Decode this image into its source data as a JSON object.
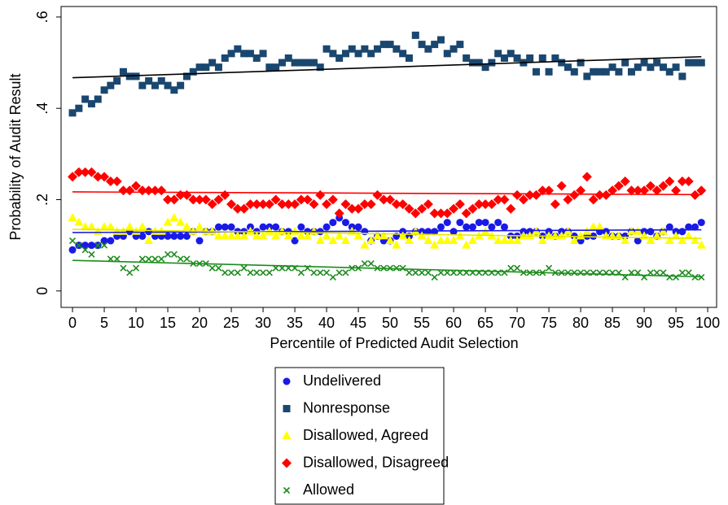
{
  "chart_data": {
    "type": "scatter",
    "x_label": "Percentile of Predicted Audit Selection",
    "y_label": "Probability of Audit Result",
    "xlim": [
      -1.8,
      101.4
    ],
    "ylim": [
      -0.036,
      0.623
    ],
    "xticks": [
      0,
      5,
      10,
      15,
      20,
      25,
      30,
      35,
      40,
      45,
      50,
      55,
      60,
      65,
      70,
      75,
      80,
      85,
      90,
      95,
      100
    ],
    "yticks": [
      0,
      {
        "value": 0.2,
        "label": ".2"
      },
      {
        "value": 0.4,
        "label": ".4"
      },
      {
        "value": 0.6,
        "label": ".6"
      }
    ],
    "x": [
      0,
      1,
      2,
      3,
      4,
      5,
      6,
      7,
      8,
      9,
      10,
      11,
      12,
      13,
      14,
      15,
      16,
      17,
      18,
      19,
      20,
      21,
      22,
      23,
      24,
      25,
      26,
      27,
      28,
      29,
      30,
      31,
      32,
      33,
      34,
      35,
      36,
      37,
      38,
      39,
      40,
      41,
      42,
      43,
      44,
      45,
      46,
      47,
      48,
      49,
      50,
      51,
      52,
      53,
      54,
      55,
      56,
      57,
      58,
      59,
      60,
      61,
      62,
      63,
      64,
      65,
      66,
      67,
      68,
      69,
      70,
      71,
      72,
      73,
      74,
      75,
      76,
      77,
      78,
      79,
      80,
      81,
      82,
      83,
      84,
      85,
      86,
      87,
      88,
      89,
      90,
      91,
      92,
      93,
      94,
      95,
      96,
      97,
      98,
      99
    ],
    "series": [
      {
        "name": "Undelivered",
        "color": "#1a1ae6",
        "marker": "circle",
        "values": [
          0.09,
          0.1,
          0.1,
          0.1,
          0.1,
          0.11,
          0.11,
          0.12,
          0.12,
          0.13,
          0.12,
          0.12,
          0.13,
          0.12,
          0.12,
          0.12,
          0.12,
          0.12,
          0.12,
          0.13,
          0.11,
          0.13,
          0.13,
          0.14,
          0.14,
          0.14,
          0.13,
          0.13,
          0.14,
          0.13,
          0.14,
          0.14,
          0.14,
          0.13,
          0.13,
          0.11,
          0.14,
          0.13,
          0.13,
          0.13,
          0.14,
          0.15,
          0.16,
          0.15,
          0.14,
          0.14,
          0.13,
          0.11,
          0.12,
          0.11,
          0.11,
          0.12,
          0.13,
          0.12,
          0.13,
          0.13,
          0.13,
          0.13,
          0.14,
          0.15,
          0.13,
          0.15,
          0.14,
          0.14,
          0.15,
          0.15,
          0.14,
          0.15,
          0.14,
          0.12,
          0.12,
          0.13,
          0.13,
          0.13,
          0.12,
          0.13,
          0.12,
          0.13,
          0.13,
          0.12,
          0.11,
          0.12,
          0.12,
          0.13,
          0.13,
          0.12,
          0.12,
          0.12,
          0.13,
          0.11,
          0.13,
          0.13,
          0.12,
          0.13,
          0.14,
          0.13,
          0.13,
          0.14,
          0.14,
          0.15
        ]
      },
      {
        "name": "Nonresponse",
        "color": "#1a476f",
        "marker": "square",
        "values": [
          0.39,
          0.4,
          0.42,
          0.41,
          0.42,
          0.44,
          0.45,
          0.46,
          0.48,
          0.47,
          0.47,
          0.45,
          0.46,
          0.45,
          0.46,
          0.45,
          0.44,
          0.45,
          0.47,
          0.48,
          0.49,
          0.49,
          0.5,
          0.49,
          0.51,
          0.52,
          0.53,
          0.52,
          0.52,
          0.51,
          0.52,
          0.49,
          0.49,
          0.5,
          0.51,
          0.5,
          0.5,
          0.5,
          0.5,
          0.49,
          0.53,
          0.52,
          0.51,
          0.52,
          0.53,
          0.52,
          0.53,
          0.52,
          0.53,
          0.54,
          0.54,
          0.53,
          0.52,
          0.51,
          0.56,
          0.54,
          0.53,
          0.54,
          0.55,
          0.52,
          0.53,
          0.54,
          0.51,
          0.5,
          0.5,
          0.49,
          0.5,
          0.52,
          0.51,
          0.52,
          0.51,
          0.5,
          0.51,
          0.48,
          0.51,
          0.48,
          0.51,
          0.5,
          0.49,
          0.48,
          0.5,
          0.47,
          0.48,
          0.48,
          0.48,
          0.49,
          0.48,
          0.5,
          0.48,
          0.49,
          0.5,
          0.49,
          0.5,
          0.49,
          0.48,
          0.49,
          0.47,
          0.5,
          0.5,
          0.5
        ]
      },
      {
        "name": "Disallowed, Agreed",
        "color": "#ffff00",
        "marker": "triangle",
        "values": [
          0.16,
          0.15,
          0.14,
          0.14,
          0.13,
          0.14,
          0.14,
          0.13,
          0.13,
          0.14,
          0.13,
          0.14,
          0.11,
          0.13,
          0.13,
          0.15,
          0.16,
          0.15,
          0.14,
          0.13,
          0.14,
          0.13,
          0.13,
          0.12,
          0.12,
          0.12,
          0.12,
          0.12,
          0.13,
          0.12,
          0.12,
          0.13,
          0.12,
          0.13,
          0.12,
          0.13,
          0.12,
          0.12,
          0.13,
          0.11,
          0.12,
          0.11,
          0.12,
          0.11,
          0.13,
          0.12,
          0.1,
          0.11,
          0.12,
          0.12,
          0.11,
          0.1,
          0.12,
          0.11,
          0.13,
          0.12,
          0.11,
          0.1,
          0.11,
          0.11,
          0.11,
          0.12,
          0.1,
          0.11,
          0.12,
          0.13,
          0.12,
          0.11,
          0.11,
          0.11,
          0.11,
          0.12,
          0.12,
          0.13,
          0.11,
          0.12,
          0.12,
          0.12,
          0.13,
          0.11,
          0.12,
          0.13,
          0.14,
          0.14,
          0.12,
          0.12,
          0.12,
          0.11,
          0.13,
          0.13,
          0.12,
          0.11,
          0.12,
          0.13,
          0.11,
          0.12,
          0.11,
          0.12,
          0.11,
          0.1
        ]
      },
      {
        "name": "Disallowed, Disagreed",
        "color": "#ff0000",
        "marker": "diamond",
        "values": [
          0.25,
          0.26,
          0.26,
          0.26,
          0.25,
          0.25,
          0.24,
          0.24,
          0.22,
          0.22,
          0.23,
          0.22,
          0.22,
          0.22,
          0.22,
          0.2,
          0.2,
          0.21,
          0.21,
          0.2,
          0.2,
          0.2,
          0.19,
          0.2,
          0.21,
          0.19,
          0.18,
          0.18,
          0.19,
          0.19,
          0.19,
          0.19,
          0.2,
          0.19,
          0.19,
          0.19,
          0.2,
          0.2,
          0.19,
          0.21,
          0.19,
          0.2,
          0.17,
          0.19,
          0.18,
          0.18,
          0.19,
          0.19,
          0.21,
          0.2,
          0.2,
          0.19,
          0.19,
          0.18,
          0.17,
          0.18,
          0.19,
          0.17,
          0.17,
          0.17,
          0.18,
          0.19,
          0.17,
          0.18,
          0.19,
          0.19,
          0.19,
          0.2,
          0.2,
          0.18,
          0.21,
          0.2,
          0.21,
          0.21,
          0.22,
          0.22,
          0.19,
          0.23,
          0.2,
          0.21,
          0.22,
          0.25,
          0.2,
          0.21,
          0.21,
          0.22,
          0.23,
          0.24,
          0.22,
          0.22,
          0.22,
          0.23,
          0.22,
          0.23,
          0.24,
          0.22,
          0.24,
          0.24,
          0.21,
          0.22
        ]
      },
      {
        "name": "Allowed",
        "color": "#1c8c1c",
        "marker": "x",
        "values": [
          0.11,
          0.1,
          0.09,
          0.08,
          0.1,
          0.1,
          0.07,
          0.07,
          0.05,
          0.04,
          0.05,
          0.07,
          0.07,
          0.07,
          0.07,
          0.08,
          0.08,
          0.07,
          0.07,
          0.06,
          0.06,
          0.06,
          0.05,
          0.05,
          0.04,
          0.04,
          0.04,
          0.05,
          0.04,
          0.04,
          0.04,
          0.04,
          0.05,
          0.05,
          0.05,
          0.05,
          0.04,
          0.05,
          0.04,
          0.04,
          0.04,
          0.03,
          0.04,
          0.04,
          0.05,
          0.05,
          0.06,
          0.06,
          0.05,
          0.05,
          0.05,
          0.05,
          0.05,
          0.04,
          0.04,
          0.04,
          0.04,
          0.03,
          0.04,
          0.04,
          0.04,
          0.04,
          0.04,
          0.04,
          0.04,
          0.04,
          0.04,
          0.04,
          0.04,
          0.05,
          0.05,
          0.04,
          0.04,
          0.04,
          0.04,
          0.05,
          0.04,
          0.04,
          0.04,
          0.04,
          0.04,
          0.04,
          0.04,
          0.04,
          0.04,
          0.04,
          0.04,
          0.03,
          0.04,
          0.04,
          0.03,
          0.04,
          0.04,
          0.04,
          0.03,
          0.03,
          0.04,
          0.04,
          0.03,
          0.03
        ]
      }
    ],
    "fit_lines": [
      {
        "color": "#1a1ae6",
        "x": [
          0,
          99
        ],
        "values": [
          0.128,
          0.134
        ]
      },
      {
        "color": "#000000",
        "x": [
          0,
          99
        ],
        "values": [
          0.467,
          0.513
        ]
      },
      {
        "color": "#e6e600",
        "x": [
          0,
          99
        ],
        "values": [
          0.135,
          0.115
        ]
      },
      {
        "color": "#ff0000",
        "x": [
          0,
          99
        ],
        "values": [
          0.217,
          0.211
        ]
      },
      {
        "color": "#1c8c1c",
        "x": [
          0,
          99
        ],
        "values": [
          0.067,
          0.031
        ]
      }
    ]
  }
}
